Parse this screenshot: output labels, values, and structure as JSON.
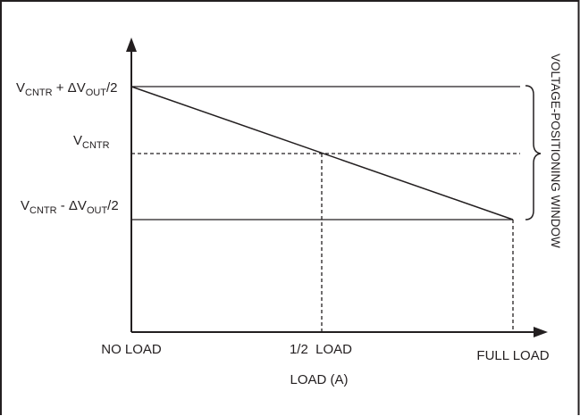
{
  "chart_data": {
    "type": "line",
    "xlabel": "LOAD (A)",
    "x_ticks": [
      "NO LOAD",
      "1/2  LOAD",
      "FULL LOAD"
    ],
    "y_ticks": [
      {
        "name": "upper",
        "base": "V",
        "sub": "CNTR",
        "op": " + ΔV",
        "sub2": "OUT",
        "tail": "/2"
      },
      {
        "name": "center",
        "base": "V",
        "sub": "CNTR"
      },
      {
        "name": "lower",
        "base": "V",
        "sub": "CNTR",
        "op": " - ΔV",
        "sub2": "OUT",
        "tail": "/2"
      }
    ],
    "series": [
      {
        "x": [
          0,
          1
        ],
        "y": [
          1,
          -1
        ]
      }
    ],
    "xlim": [
      0,
      1
    ],
    "ylim": [
      -1,
      1
    ],
    "reference_lines": [
      {
        "axis": "y",
        "value": 1,
        "style": "solid"
      },
      {
        "axis": "y",
        "value": 0,
        "style": "dashed"
      },
      {
        "axis": "y",
        "value": -1,
        "style": "solid"
      },
      {
        "axis": "x",
        "value": 0.5,
        "style": "dashed"
      },
      {
        "axis": "x",
        "value": 1,
        "style": "dashed"
      }
    ],
    "bracket_label": "VOLTAGE-POSITIONING WINDOW"
  },
  "colors": {
    "ink": "#231f20",
    "background": "#ffffff"
  }
}
